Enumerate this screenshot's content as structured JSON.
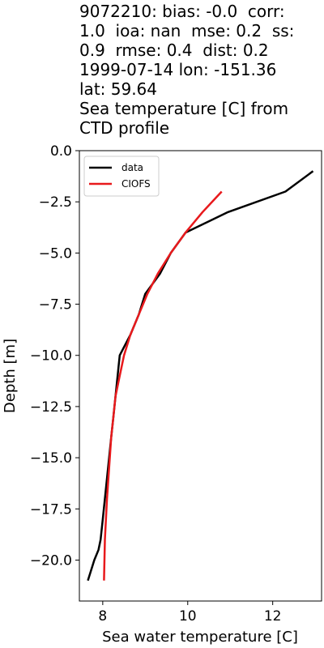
{
  "chart_data": {
    "type": "line",
    "title_lines": [
      "9072210: bias: -0.0  corr:",
      "1.0  ioa: nan  mse: 0.2  ss:",
      "0.9  rmse: 0.4  dist: 0.2",
      "1999-07-14 lon: -151.36",
      "lat: 59.64",
      "Sea temperature [C] from",
      "CTD profile"
    ],
    "xlabel": "Sea water temperature [C]",
    "ylabel": "Depth [m]",
    "xlim": [
      7.45,
      13.15
    ],
    "ylim": [
      -22.0,
      0.0
    ],
    "xticks": [
      8,
      10,
      12
    ],
    "xtick_labels": [
      "8",
      "10",
      "12"
    ],
    "yticks": [
      0.0,
      -2.5,
      -5.0,
      -7.5,
      -10.0,
      -12.5,
      -15.0,
      -17.5,
      -20.0
    ],
    "ytick_labels": [
      "0.0",
      "−2.5",
      "−5.0",
      "−7.5",
      "−10.0",
      "−12.5",
      "−15.0",
      "−17.5",
      "−20.0"
    ],
    "legend_position": "top-left",
    "series": [
      {
        "name": "data",
        "color": "#000000",
        "x": [
          12.95,
          12.3,
          10.95,
          9.95,
          9.6,
          9.35,
          9.0,
          8.85,
          8.65,
          8.4,
          8.35,
          8.3,
          8.25,
          8.2,
          8.15,
          8.1,
          8.05,
          8.0,
          7.95,
          7.9,
          7.8,
          7.65
        ],
        "y": [
          -1.0,
          -2.0,
          -3.0,
          -4.0,
          -5.0,
          -6.0,
          -7.0,
          -8.0,
          -9.0,
          -10.0,
          -11.0,
          -12.0,
          -13.0,
          -14.0,
          -15.0,
          -16.0,
          -17.0,
          -18.0,
          -19.0,
          -19.5,
          -20.0,
          -21.0
        ]
      },
      {
        "name": "CIOFS",
        "color": "#e8191c",
        "x": [
          10.8,
          10.35,
          9.95,
          9.6,
          9.3,
          9.05,
          8.85,
          8.65,
          8.5,
          8.4,
          8.3,
          8.25,
          8.2,
          8.15,
          8.1,
          8.05,
          8.03
        ],
        "y": [
          -2.0,
          -3.0,
          -4.0,
          -5.0,
          -6.0,
          -7.0,
          -8.0,
          -9.0,
          -10.0,
          -11.0,
          -12.0,
          -13.0,
          -14.0,
          -15.5,
          -17.0,
          -19.0,
          -21.0
        ]
      }
    ]
  }
}
